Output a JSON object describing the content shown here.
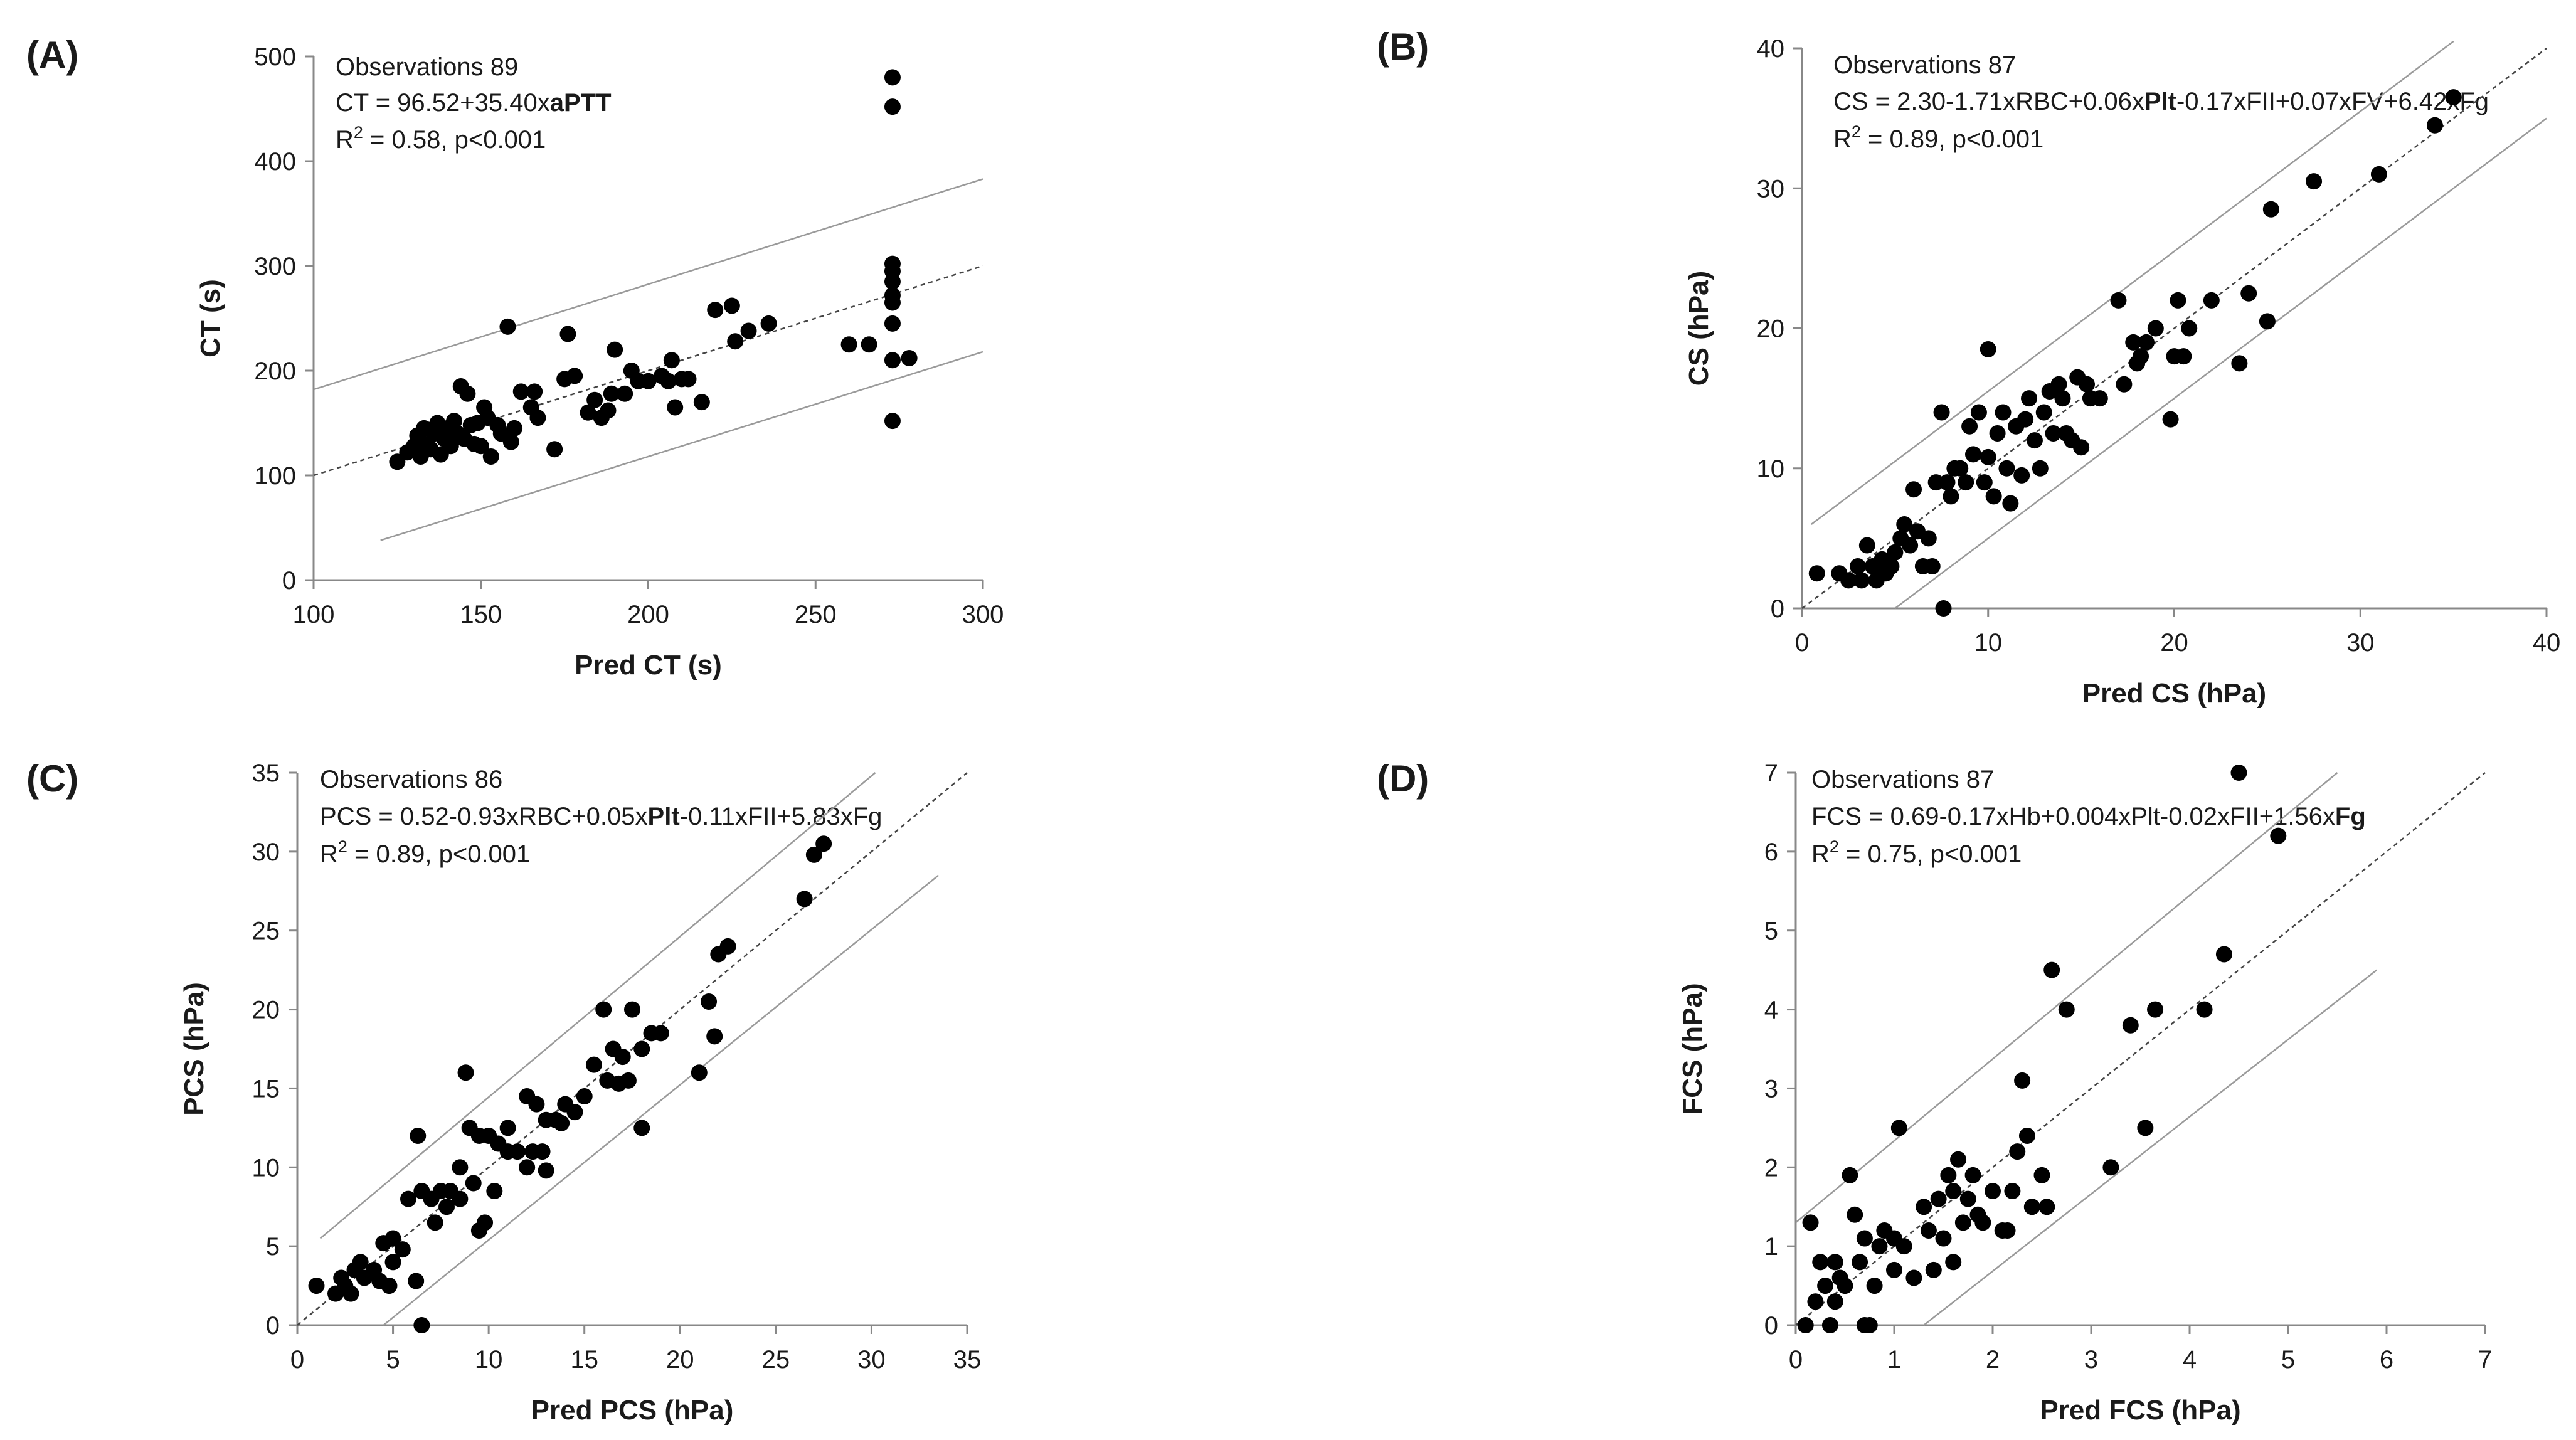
{
  "chart_data": [
    {
      "type": "scatter",
      "panel_label": "(A)",
      "xlabel": "Pred CT (s)",
      "ylabel": "CT (s)",
      "xlim": [
        100,
        300
      ],
      "ylim": [
        0,
        500
      ],
      "xticks": [
        "100",
        "150",
        "200",
        "250",
        "300"
      ],
      "yticks": [
        "0",
        "100",
        "200",
        "300",
        "400",
        "500"
      ],
      "annotation": {
        "observations": "Observations 89",
        "eq_plain": "CT = 96.52+35.40x",
        "eq_bold": "aPTT",
        "r2_prefix": "R",
        "r2_sup": "2",
        "r2_rest": " = 0.58, p<0.001"
      },
      "lines": {
        "fit": [
          [
            100,
            100
          ],
          [
            300,
            300
          ]
        ],
        "upper": [
          [
            100,
            182
          ],
          [
            300,
            383
          ]
        ],
        "lower": [
          [
            120,
            38
          ],
          [
            300,
            218
          ]
        ]
      },
      "points": [
        [
          125,
          113
        ],
        [
          128,
          122
        ],
        [
          130,
          128
        ],
        [
          131,
          138
        ],
        [
          132,
          118
        ],
        [
          133,
          145
        ],
        [
          134,
          130
        ],
        [
          135,
          125
        ],
        [
          136,
          140
        ],
        [
          137,
          150
        ],
        [
          138,
          120
        ],
        [
          139,
          135
        ],
        [
          140,
          145
        ],
        [
          141,
          128
        ],
        [
          142,
          152
        ],
        [
          143,
          140
        ],
        [
          144,
          185
        ],
        [
          145,
          135
        ],
        [
          146,
          178
        ],
        [
          147,
          148
        ],
        [
          148,
          130
        ],
        [
          149,
          150
        ],
        [
          150,
          128
        ],
        [
          151,
          165
        ],
        [
          152,
          155
        ],
        [
          153,
          118
        ],
        [
          155,
          148
        ],
        [
          156,
          140
        ],
        [
          158,
          242
        ],
        [
          159,
          132
        ],
        [
          160,
          145
        ],
        [
          162,
          180
        ],
        [
          165,
          165
        ],
        [
          166,
          180
        ],
        [
          167,
          155
        ],
        [
          172,
          125
        ],
        [
          175,
          192
        ],
        [
          176,
          235
        ],
        [
          178,
          195
        ],
        [
          182,
          160
        ],
        [
          184,
          172
        ],
        [
          186,
          155
        ],
        [
          188,
          162
        ],
        [
          189,
          178
        ],
        [
          190,
          220
        ],
        [
          193,
          178
        ],
        [
          195,
          200
        ],
        [
          197,
          190
        ],
        [
          200,
          190
        ],
        [
          204,
          195
        ],
        [
          206,
          190
        ],
        [
          207,
          210
        ],
        [
          208,
          165
        ],
        [
          210,
          192
        ],
        [
          212,
          192
        ],
        [
          216,
          170
        ],
        [
          220,
          258
        ],
        [
          225,
          262
        ],
        [
          226,
          228
        ],
        [
          230,
          238
        ],
        [
          236,
          245
        ],
        [
          260,
          225
        ],
        [
          266,
          225
        ],
        [
          273,
          480
        ],
        [
          273,
          452
        ],
        [
          273,
          302
        ],
        [
          273,
          295
        ],
        [
          273,
          285
        ],
        [
          273,
          272
        ],
        [
          273,
          265
        ],
        [
          273,
          245
        ],
        [
          273,
          210
        ],
        [
          273,
          152
        ],
        [
          278,
          212
        ]
      ]
    },
    {
      "type": "scatter",
      "panel_label": "(B)",
      "xlabel": "Pred CS (hPa)",
      "ylabel": "CS (hPa)",
      "xlim": [
        0,
        40
      ],
      "ylim": [
        0,
        40
      ],
      "xticks": [
        "0",
        "10",
        "20",
        "30",
        "40"
      ],
      "yticks": [
        "0",
        "10",
        "20",
        "30",
        "40"
      ],
      "annotation": {
        "observations": "Observations 87",
        "eq_pre": "CS = 2.30-1.71xRBC+0.06x",
        "eq_bold": "Plt",
        "eq_post": "-0.17xFII+0.07xFV+6.42xFg",
        "r2_prefix": "R",
        "r2_sup": "2",
        "r2_rest": " = 0.89, p<0.001"
      },
      "lines": {
        "fit": [
          [
            0,
            0
          ],
          [
            40,
            40
          ]
        ],
        "upper": [
          [
            0.5,
            6
          ],
          [
            35,
            40.5
          ]
        ],
        "lower": [
          [
            5,
            0
          ],
          [
            40,
            35
          ]
        ]
      },
      "points": [
        [
          0.8,
          2.5
        ],
        [
          2,
          2.5
        ],
        [
          2.5,
          2
        ],
        [
          3,
          3
        ],
        [
          3.2,
          2
        ],
        [
          3.5,
          4.5
        ],
        [
          3.8,
          3
        ],
        [
          4,
          2
        ],
        [
          4.3,
          3.5
        ],
        [
          4.5,
          2.5
        ],
        [
          4.8,
          3
        ],
        [
          5,
          4
        ],
        [
          5.3,
          5
        ],
        [
          5.5,
          6
        ],
        [
          5.8,
          4.5
        ],
        [
          6,
          8.5
        ],
        [
          6.2,
          5.5
        ],
        [
          6.5,
          3
        ],
        [
          6.8,
          5
        ],
        [
          7,
          3
        ],
        [
          7.2,
          9
        ],
        [
          7.5,
          14
        ],
        [
          7.6,
          0
        ],
        [
          7.8,
          9
        ],
        [
          8,
          8
        ],
        [
          8.2,
          10
        ],
        [
          8.5,
          10
        ],
        [
          8.8,
          9
        ],
        [
          9,
          13
        ],
        [
          9.2,
          11
        ],
        [
          9.5,
          14
        ],
        [
          9.8,
          9
        ],
        [
          10,
          18.5
        ],
        [
          10,
          10.8
        ],
        [
          10.3,
          8
        ],
        [
          10.5,
          12.5
        ],
        [
          10.8,
          14
        ],
        [
          11,
          10
        ],
        [
          11.2,
          7.5
        ],
        [
          11.5,
          13
        ],
        [
          11.8,
          9.5
        ],
        [
          12,
          13.5
        ],
        [
          12.2,
          15
        ],
        [
          12.5,
          12
        ],
        [
          12.8,
          10
        ],
        [
          13,
          14
        ],
        [
          13.3,
          15.5
        ],
        [
          13.5,
          12.5
        ],
        [
          13.8,
          16
        ],
        [
          14,
          15
        ],
        [
          14.2,
          12.5
        ],
        [
          14.5,
          12
        ],
        [
          14.8,
          16.5
        ],
        [
          15,
          11.5
        ],
        [
          15.3,
          16
        ],
        [
          15.5,
          15
        ],
        [
          16,
          15
        ],
        [
          17,
          22
        ],
        [
          17.3,
          16
        ],
        [
          17.8,
          19
        ],
        [
          18,
          17.5
        ],
        [
          18.2,
          18
        ],
        [
          18.5,
          19
        ],
        [
          19,
          20
        ],
        [
          19.8,
          13.5
        ],
        [
          20,
          18
        ],
        [
          20.2,
          22
        ],
        [
          20.5,
          18
        ],
        [
          20.8,
          20
        ],
        [
          22,
          22
        ],
        [
          23.5,
          17.5
        ],
        [
          24,
          22.5
        ],
        [
          25,
          20.5
        ],
        [
          25.2,
          28.5
        ],
        [
          27.5,
          30.5
        ],
        [
          31,
          31
        ],
        [
          34,
          34.5
        ],
        [
          35,
          36.5
        ]
      ]
    },
    {
      "type": "scatter",
      "panel_label": "(C)",
      "xlabel": "Pred PCS (hPa)",
      "ylabel": "PCS (hPa)",
      "xlim": [
        0,
        35
      ],
      "ylim": [
        0,
        35
      ],
      "xticks": [
        "0",
        "5",
        "10",
        "15",
        "20",
        "25",
        "30",
        "35"
      ],
      "yticks": [
        "0",
        "5",
        "10",
        "15",
        "20",
        "25",
        "30",
        "35"
      ],
      "annotation": {
        "observations": "Observations 86",
        "eq_pre": "PCS = 0.52-0.93xRBC+0.05x",
        "eq_bold": "Plt",
        "eq_post": "-0.11xFII+5.83xFg",
        "r2_prefix": "R",
        "r2_sup": "2",
        "r2_rest": " = 0.89, p<0.001"
      },
      "lines": {
        "fit": [
          [
            0,
            0
          ],
          [
            35,
            35
          ]
        ],
        "upper": [
          [
            1.2,
            5.5
          ],
          [
            30.2,
            35
          ]
        ],
        "lower": [
          [
            4.5,
            0
          ],
          [
            33.5,
            28.5
          ]
        ]
      },
      "points": [
        [
          1,
          2.5
        ],
        [
          2,
          2
        ],
        [
          2.3,
          3
        ],
        [
          2.5,
          2.5
        ],
        [
          2.8,
          2
        ],
        [
          3,
          3.5
        ],
        [
          3.3,
          4
        ],
        [
          3.5,
          3
        ],
        [
          4,
          3.5
        ],
        [
          4.3,
          2.8
        ],
        [
          4.5,
          5.2
        ],
        [
          4.8,
          2.5
        ],
        [
          5,
          4
        ],
        [
          5,
          5.5
        ],
        [
          5.5,
          4.8
        ],
        [
          5.8,
          8
        ],
        [
          6.2,
          2.8
        ],
        [
          6.3,
          12
        ],
        [
          6.5,
          0
        ],
        [
          6.5,
          8.5
        ],
        [
          7,
          8
        ],
        [
          7.2,
          6.5
        ],
        [
          7.5,
          8.5
        ],
        [
          7.8,
          7.5
        ],
        [
          8,
          8.5
        ],
        [
          8.5,
          8
        ],
        [
          8.5,
          10
        ],
        [
          8.8,
          16
        ],
        [
          9,
          12.5
        ],
        [
          9.2,
          9
        ],
        [
          9.5,
          6
        ],
        [
          9.5,
          12
        ],
        [
          9.8,
          6.5
        ],
        [
          10,
          12
        ],
        [
          10.3,
          8.5
        ],
        [
          10.5,
          11.5
        ],
        [
          11,
          11
        ],
        [
          11,
          12.5
        ],
        [
          11.5,
          11
        ],
        [
          12,
          10
        ],
        [
          12,
          14.5
        ],
        [
          12.3,
          11
        ],
        [
          12.5,
          14
        ],
        [
          12.8,
          11
        ],
        [
          13,
          13
        ],
        [
          13,
          9.8
        ],
        [
          13.5,
          13
        ],
        [
          13.8,
          12.8
        ],
        [
          14,
          14
        ],
        [
          14.5,
          13.5
        ],
        [
          15,
          14.5
        ],
        [
          15.5,
          16.5
        ],
        [
          16,
          20
        ],
        [
          16.2,
          15.5
        ],
        [
          16.5,
          17.5
        ],
        [
          16.8,
          15.3
        ],
        [
          17,
          17
        ],
        [
          17.3,
          15.5
        ],
        [
          17.5,
          20
        ],
        [
          18,
          17.5
        ],
        [
          18,
          12.5
        ],
        [
          18.5,
          18.5
        ],
        [
          19,
          18.5
        ],
        [
          21,
          16
        ],
        [
          21.5,
          20.5
        ],
        [
          21.8,
          18.3
        ],
        [
          22,
          23.5
        ],
        [
          22.5,
          24
        ],
        [
          26.5,
          27
        ],
        [
          27,
          29.8
        ],
        [
          27.5,
          30.5
        ]
      ]
    },
    {
      "type": "scatter",
      "panel_label": "(D)",
      "xlabel": "Pred FCS (hPa)",
      "ylabel": "FCS (hPa)",
      "xlim": [
        0,
        7
      ],
      "ylim": [
        0,
        7
      ],
      "xticks": [
        "0",
        "1",
        "2",
        "3",
        "4",
        "5",
        "6",
        "7"
      ],
      "yticks": [
        "0",
        "1",
        "2",
        "3",
        "4",
        "5",
        "6",
        "7"
      ],
      "annotation": {
        "observations": "Observations 87",
        "eq_plain": "FCS = 0.69-0.17xHb+0.004xPlt-0.02xFII+1.56x",
        "eq_bold": "Fg",
        "r2_prefix": "R",
        "r2_sup": "2",
        "r2_rest": " = 0.75, p<0.001"
      },
      "lines": {
        "fit": [
          [
            0,
            0
          ],
          [
            7,
            7
          ]
        ],
        "upper": [
          [
            0,
            1.3
          ],
          [
            5.5,
            7
          ]
        ],
        "lower": [
          [
            1.3,
            0
          ],
          [
            5.9,
            4.5
          ]
        ]
      },
      "points": [
        [
          0.1,
          0
        ],
        [
          0.15,
          1.3
        ],
        [
          0.2,
          0.3
        ],
        [
          0.25,
          0.8
        ],
        [
          0.3,
          0.5
        ],
        [
          0.35,
          0
        ],
        [
          0.4,
          0.3
        ],
        [
          0.4,
          0.8
        ],
        [
          0.45,
          0.6
        ],
        [
          0.5,
          0.5
        ],
        [
          0.55,
          1.9
        ],
        [
          0.6,
          1.4
        ],
        [
          0.65,
          0.8
        ],
        [
          0.7,
          0
        ],
        [
          0.7,
          1.1
        ],
        [
          0.75,
          0
        ],
        [
          0.8,
          0.5
        ],
        [
          0.85,
          1
        ],
        [
          0.9,
          1.2
        ],
        [
          1,
          0.7
        ],
        [
          1,
          1.1
        ],
        [
          1.05,
          2.5
        ],
        [
          1.1,
          1
        ],
        [
          1.2,
          0.6
        ],
        [
          1.3,
          1.5
        ],
        [
          1.35,
          1.2
        ],
        [
          1.4,
          0.7
        ],
        [
          1.45,
          1.6
        ],
        [
          1.5,
          1.1
        ],
        [
          1.55,
          1.9
        ],
        [
          1.6,
          0.8
        ],
        [
          1.6,
          1.7
        ],
        [
          1.65,
          2.1
        ],
        [
          1.7,
          1.3
        ],
        [
          1.75,
          1.6
        ],
        [
          1.8,
          1.9
        ],
        [
          1.85,
          1.4
        ],
        [
          1.9,
          1.3
        ],
        [
          2,
          1.7
        ],
        [
          2.1,
          1.2
        ],
        [
          2.15,
          1.2
        ],
        [
          2.2,
          1.7
        ],
        [
          2.25,
          2.2
        ],
        [
          2.3,
          3.1
        ],
        [
          2.35,
          2.4
        ],
        [
          2.4,
          1.5
        ],
        [
          2.5,
          1.9
        ],
        [
          2.55,
          1.5
        ],
        [
          2.6,
          4.5
        ],
        [
          2.75,
          4
        ],
        [
          3.2,
          2
        ],
        [
          3.4,
          3.8
        ],
        [
          3.55,
          2.5
        ],
        [
          3.65,
          4
        ],
        [
          4.15,
          4
        ],
        [
          4.35,
          4.7
        ],
        [
          4.5,
          7
        ],
        [
          4.9,
          6.2
        ]
      ]
    }
  ]
}
